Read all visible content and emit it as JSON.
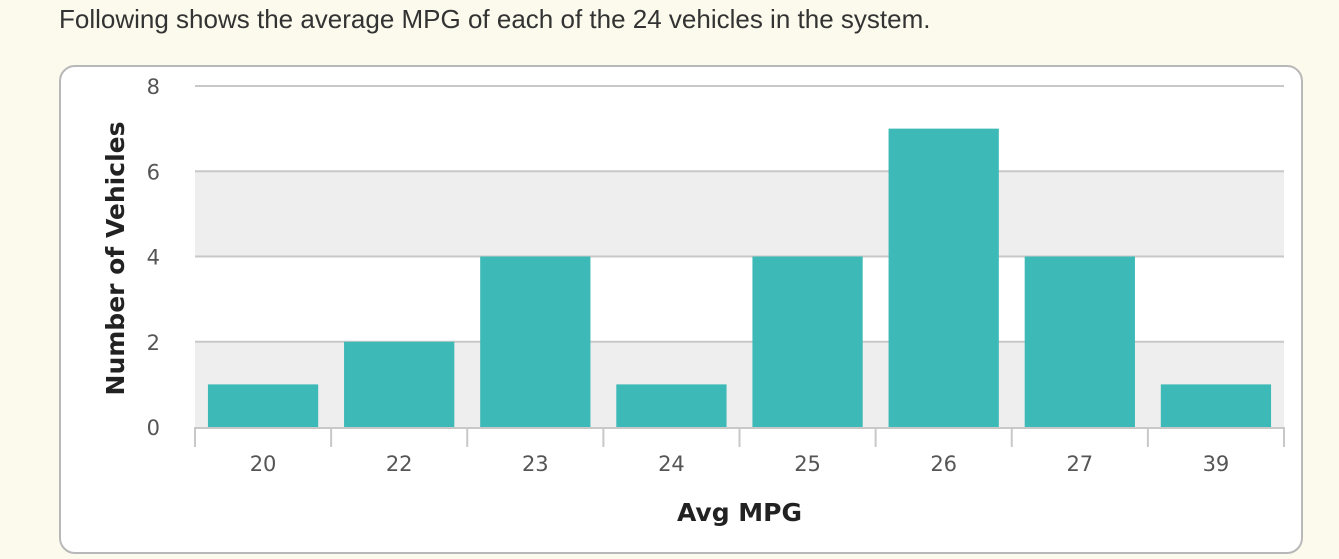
{
  "intro_text": "Following shows the average MPG of each of the 24 vehicles in the system.",
  "colors": {
    "bar": "#3dbab7",
    "band": "#eeeeee",
    "grid": "#c8c8c8",
    "page_background": "#fbfaec"
  },
  "chart_data": {
    "type": "bar",
    "categories": [
      "20",
      "22",
      "23",
      "24",
      "25",
      "26",
      "27",
      "39"
    ],
    "values": [
      1,
      2,
      4,
      1,
      4,
      7,
      4,
      1
    ],
    "title": "",
    "xlabel": "Avg MPG",
    "ylabel": "Number of Vehicles",
    "ylim": [
      0,
      8
    ],
    "yticks": [
      0,
      2,
      4,
      6,
      8
    ],
    "grid": true,
    "legend": "none"
  }
}
